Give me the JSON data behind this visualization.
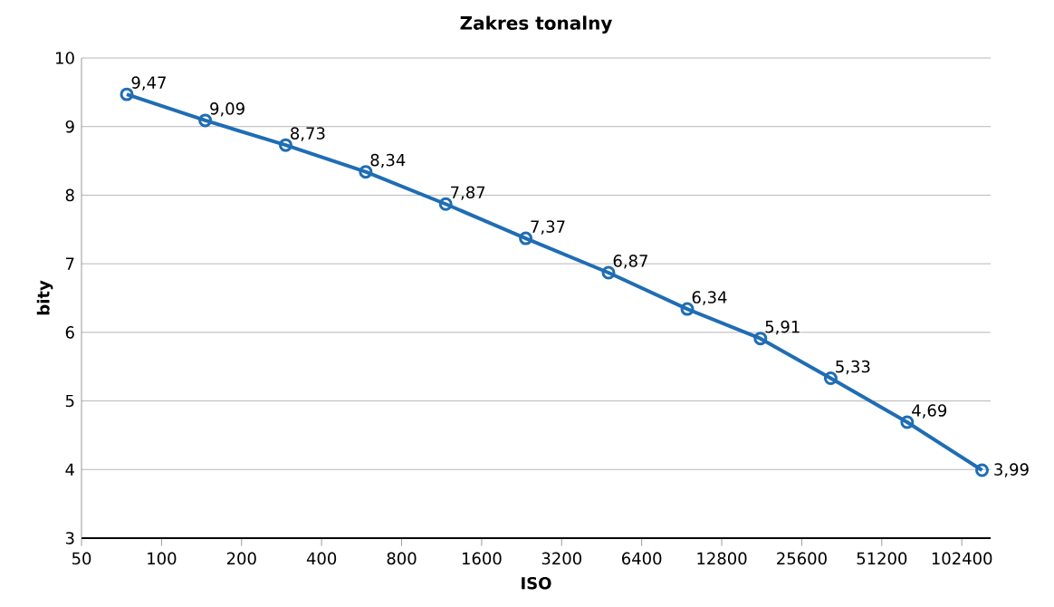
{
  "chart_data": {
    "type": "line",
    "title": "Zakres tonalny",
    "xlabel": "ISO",
    "ylabel": "bity",
    "log": "x",
    "x": [
      74,
      146,
      293,
      586,
      1172,
      2344,
      4800,
      9500,
      17900,
      32900,
      63800,
      122000
    ],
    "series": [
      {
        "color": "#1f6db4",
        "values": [
          9.47,
          9.09,
          8.73,
          8.34,
          7.87,
          7.37,
          6.87,
          6.34,
          5.91,
          5.33,
          4.69,
          3.99
        ],
        "value_labels": [
          "9,47",
          "9,09",
          "8,73",
          "8,34",
          "7,87",
          "7,37",
          "6,87",
          "6,34",
          "5,91",
          "5,33",
          "4,69",
          "3,99"
        ]
      }
    ],
    "xlim": [
      50,
      131400
    ],
    "xticks": [
      50,
      100,
      200,
      400,
      800,
      1600,
      3200,
      6400,
      12800,
      25600,
      51200,
      102400
    ],
    "ylim": [
      3,
      10
    ],
    "yticks": [
      3,
      4,
      5,
      6,
      7,
      8,
      9,
      10
    ],
    "grid": "y",
    "marker": "circle",
    "line_style": "solid"
  }
}
